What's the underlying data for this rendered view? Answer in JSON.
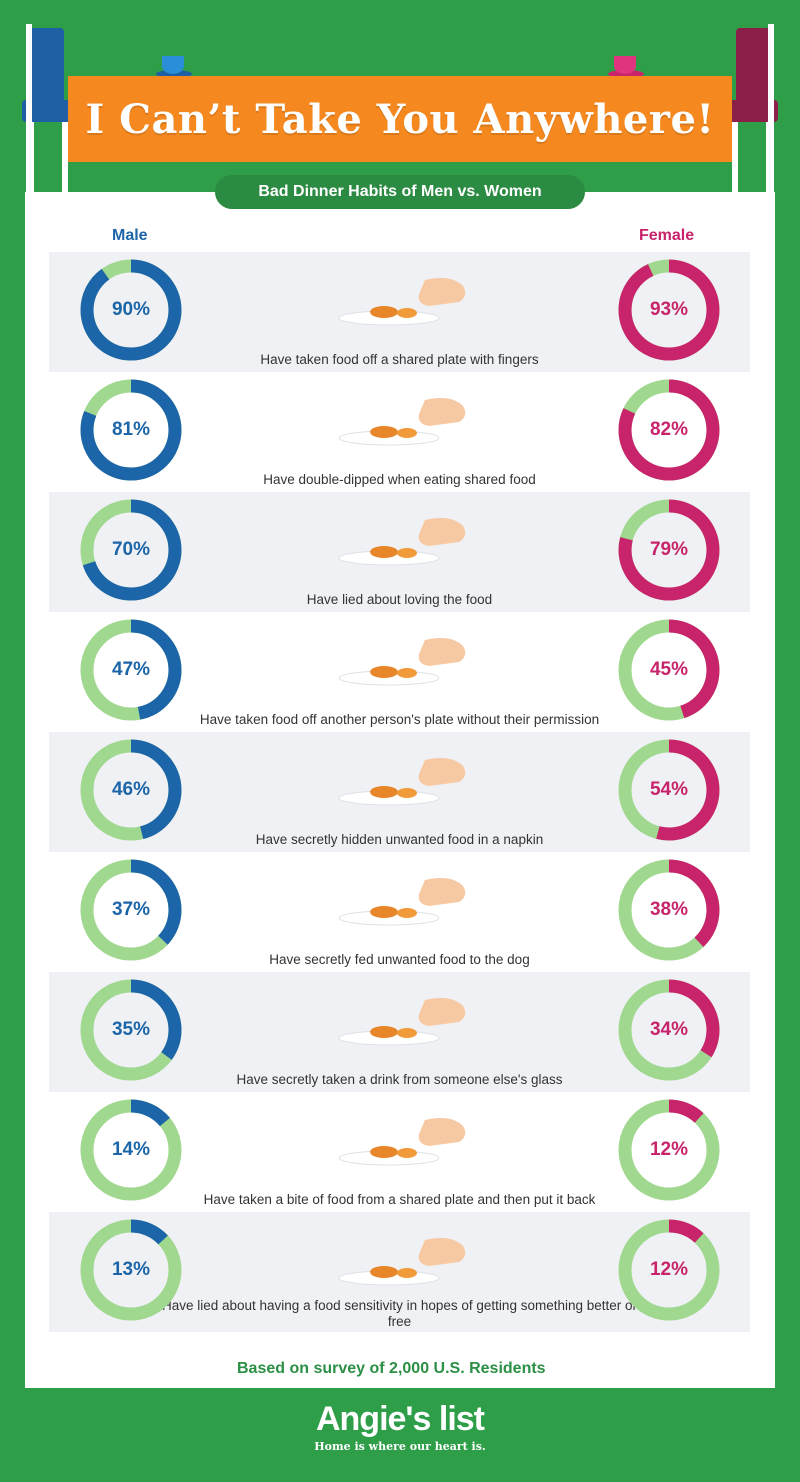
{
  "header": {
    "title": "I Can’t Take You Anywhere!",
    "subtitle": "Bad Dinner Habits of Men vs. Women"
  },
  "columns": {
    "male": "Male",
    "female": "Female"
  },
  "colors": {
    "male": "#1c65a8",
    "female": "#c8246b",
    "ring_track": "#9fd88e",
    "background": "#2e9e49",
    "banner": "#f5891f"
  },
  "chart_data": {
    "type": "donut",
    "title": "Bad Dinner Habits of Men vs. Women",
    "series_names": [
      "Male",
      "Female"
    ],
    "categories": [
      "Have taken food off a shared plate with fingers",
      "Have double-dipped when eating shared food",
      "Have lied about loving the food",
      "Have taken food off another person's plate without their permission",
      "Have secretly hidden unwanted food in a napkin",
      "Have secretly fed unwanted food to the dog",
      "Have secretly taken a drink from someone else's glass",
      "Have taken a bite of food from a shared plate and then put it back",
      "Have lied about having a food sensitivity in hopes of getting something better or free"
    ],
    "male": [
      90,
      81,
      70,
      47,
      46,
      37,
      35,
      14,
      13
    ],
    "female": [
      93,
      82,
      79,
      45,
      54,
      38,
      34,
      12,
      12
    ],
    "male_labels": [
      "90%",
      "81%",
      "70%",
      "47%",
      "46%",
      "37%",
      "35%",
      "14%",
      "13%"
    ],
    "female_labels": [
      "93%",
      "82%",
      "79%",
      "45%",
      "54%",
      "38%",
      "34%",
      "12%",
      "12%"
    ],
    "unit": "%"
  },
  "footnote": "Based on survey of 2,000 U.S. Residents",
  "brand": {
    "logo": "Angie's list",
    "tagline": "Home is where our heart is."
  }
}
